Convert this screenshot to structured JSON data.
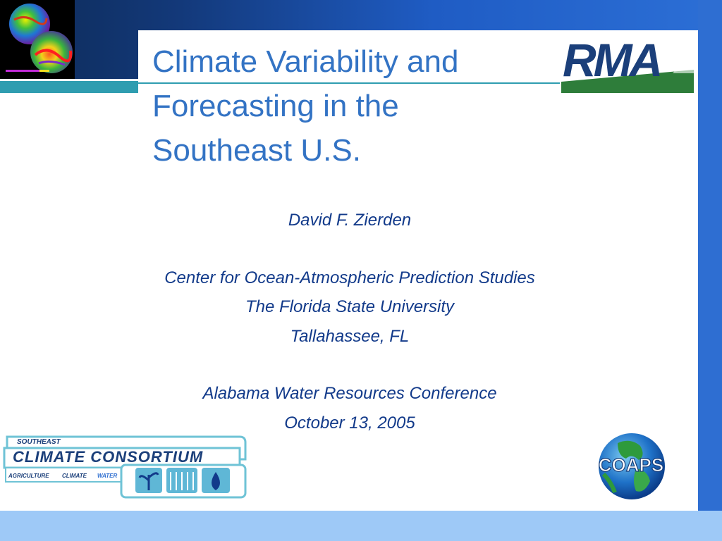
{
  "slide": {
    "title_lines": [
      "Climate Variability and",
      "Forecasting in the",
      "Southeast U.S."
    ],
    "author": "David F. Zierden",
    "affiliation": {
      "center": "Center for Ocean-Atmospheric Prediction Studies",
      "university": "The Florida State University",
      "city": "Tallahassee, FL"
    },
    "event": {
      "name": "Alabama Water Resources Conference",
      "date": "October 13, 2005"
    }
  },
  "logos": {
    "rma": {
      "text": "RMA",
      "icon": "rma-logo"
    },
    "sec": {
      "line1": "SOUTHEAST",
      "line2": "CLIMATE CONSORTIUM",
      "line3_a": "AGRICULTURE",
      "line3_b": "CLIMATE",
      "line3_c": "WATER",
      "icon": "southeast-climate-consortium-logo"
    },
    "coaps": {
      "text": "COAPS",
      "icon": "coaps-globe-logo"
    }
  },
  "colors": {
    "title": "#3373c4",
    "body_text": "#123a8a",
    "top_band": "#1f5cc4",
    "right_bar": "#2e6ed2",
    "bottom_band": "#9ec9f7",
    "teal_accent": "#2f9db0",
    "rma_green": "#2e7d3a"
  }
}
